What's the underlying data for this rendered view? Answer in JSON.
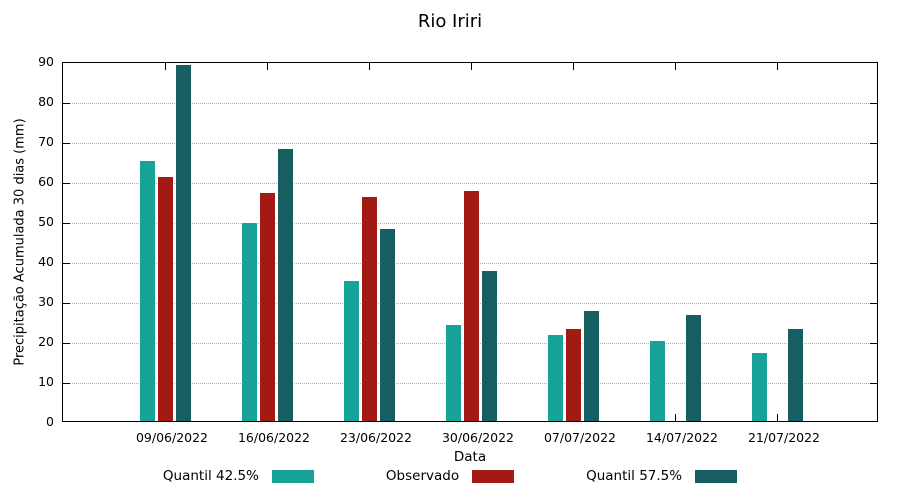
{
  "chart_data": {
    "type": "bar",
    "title": "Rio Iriri",
    "xlabel": "Data",
    "ylabel": "Precipitação Acumulada 30 dias (mm)",
    "ylim": [
      0,
      90
    ],
    "ytick_step": 10,
    "grid": "horizontal-dotted",
    "legend_position": "bottom",
    "categories": [
      "09/06/2022",
      "16/06/2022",
      "23/06/2022",
      "30/06/2022",
      "07/07/2022",
      "14/07/2022",
      "21/07/2022"
    ],
    "series": [
      {
        "name": "Quantil 42.5%",
        "color": "#17a398",
        "values": [
          65,
          49.5,
          35,
          24,
          21.5,
          20,
          17
        ]
      },
      {
        "name": "Observado",
        "color": "#a31a14",
        "values": [
          61,
          57,
          56,
          57.5,
          23,
          null,
          null
        ]
      },
      {
        "name": "Quantil 57.5%",
        "color": "#175e63",
        "values": [
          89,
          68,
          48,
          37.5,
          27.5,
          26.5,
          23
        ]
      }
    ]
  }
}
